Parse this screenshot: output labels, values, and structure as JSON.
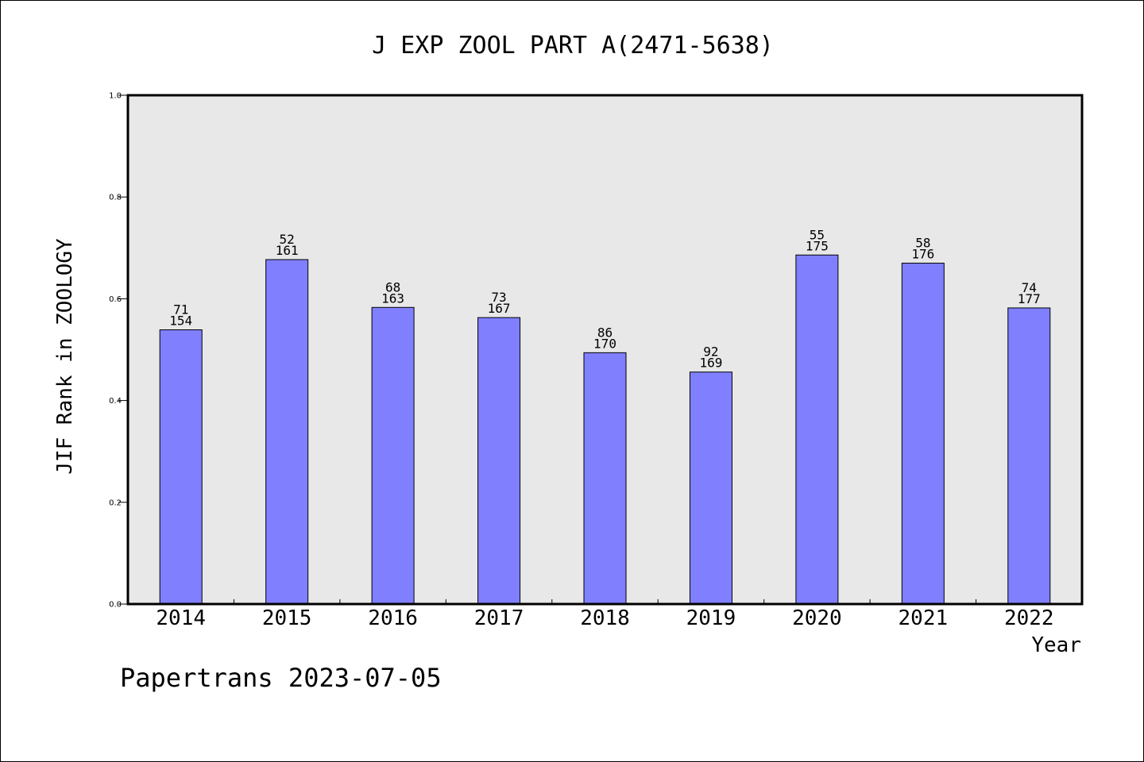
{
  "chart_data": {
    "type": "bar",
    "title": "J EXP ZOOL PART A(2471-5638)",
    "xlabel": "Year",
    "ylabel": "JIF Rank in ZOOLOGY",
    "ylim": [
      0,
      1.0
    ],
    "yticks": [
      "0.0",
      "0.2",
      "0.4",
      "0.6",
      "0.8",
      "1.0"
    ],
    "categories": [
      "2014",
      "2015",
      "2016",
      "2017",
      "2018",
      "2019",
      "2020",
      "2021",
      "2022"
    ],
    "values": [
      0.539,
      0.677,
      0.583,
      0.563,
      0.494,
      0.456,
      0.686,
      0.67,
      0.582
    ],
    "rank": [
      "71",
      "52",
      "68",
      "73",
      "86",
      "92",
      "55",
      "58",
      "74"
    ],
    "total": [
      "154",
      "161",
      "163",
      "167",
      "170",
      "169",
      "175",
      "176",
      "177"
    ],
    "grid": false,
    "colors": {
      "bar": "#8080ff",
      "plot_bg": "#e8e8e8",
      "axis": "#000000"
    }
  },
  "footer": "Papertrans 2023-07-05"
}
